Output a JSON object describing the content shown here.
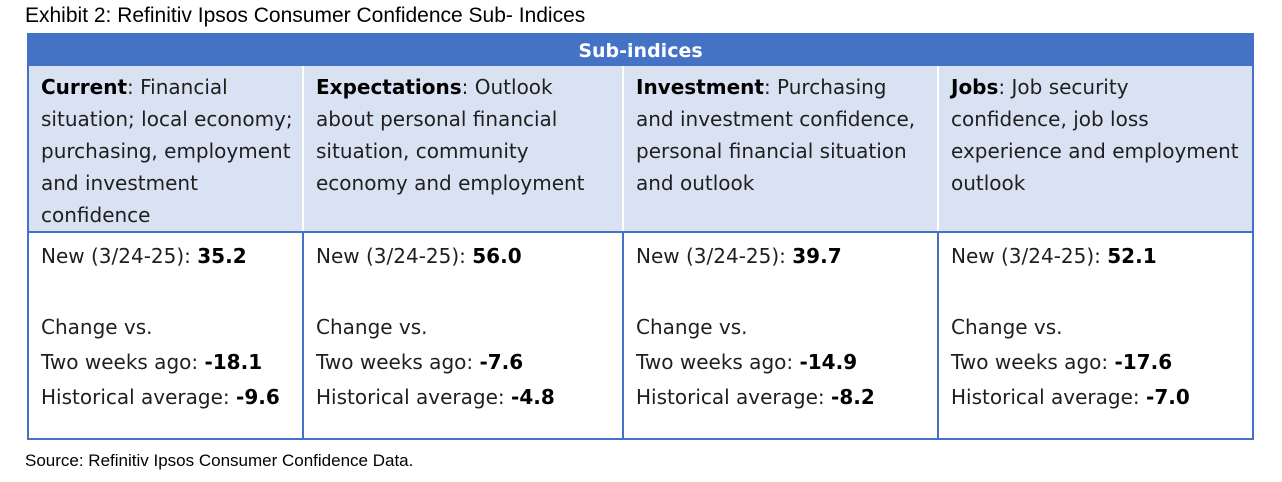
{
  "exhibit_title": "Exhibit 2: Refinitiv Ipsos Consumer Confidence Sub- Indices",
  "table": {
    "header": "Sub-indices",
    "columns": [
      {
        "name": "Current",
        "description": ": Financial situation; local economy; purchasing, employment and investment confidence",
        "new_label": "New (3/24-25): ",
        "new_value": "35.2",
        "change_label": "Change vs.",
        "two_weeks_label": "Two weeks ago: ",
        "two_weeks_value": "-18.1",
        "hist_label": "Historical average: ",
        "hist_value": "-9.6"
      },
      {
        "name": "Expectations",
        "description": ": Outlook about personal financial situation, community economy and employment",
        "new_label": "New (3/24-25): ",
        "new_value": "56.0",
        "change_label": "Change vs.",
        "two_weeks_label": "Two weeks ago: ",
        "two_weeks_value": "-7.6",
        "hist_label": "Historical average: ",
        "hist_value": "-4.8"
      },
      {
        "name": "Investment",
        "description": ": Purchasing and investment confidence, personal financial situation and outlook",
        "new_label": "New (3/24-25): ",
        "new_value": "39.7",
        "change_label": "Change vs.",
        "two_weeks_label": "Two weeks ago: ",
        "two_weeks_value": "-14.9",
        "hist_label": "Historical average: ",
        "hist_value": "-8.2"
      },
      {
        "name": "Jobs",
        "description": ": Job security confidence, job loss experience and employment outlook",
        "new_label": "New (3/24-25): ",
        "new_value": "52.1",
        "change_label": "Change vs.",
        "two_weeks_label": "Two weeks ago: ",
        "two_weeks_value": "-17.6",
        "hist_label": "Historical average: ",
        "hist_value": "-7.0"
      }
    ]
  },
  "source": "Source: Refinitiv Ipsos Consumer Confidence Data.",
  "colors": {
    "header_bg": "#4472c4",
    "desc_bg": "#d9e2f3",
    "border": "#4472c4"
  }
}
